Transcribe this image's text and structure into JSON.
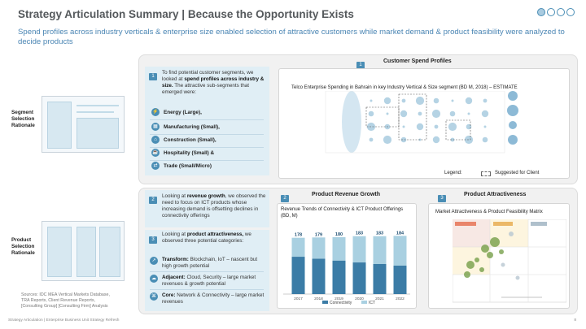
{
  "header": {
    "title": "Strategy Articulation Summary | Because the Opportunity Exists",
    "subtitle": "Spend profiles across industry verticals & enterprise size enabled selection of attractive customers while market demand & product feasibility were analyzed to decide products"
  },
  "side_labels": {
    "segment": [
      "Segment",
      "Selection",
      "Rationale"
    ],
    "product": [
      "Product",
      "Selection",
      "Rationale"
    ]
  },
  "segment_panel": {
    "num": "1",
    "text_pre": "To find potential customer segments, we looked at ",
    "text_bold": "spend profiles across industry & size.",
    "text_post": " The attractive sub-segments that emerged were:",
    "items": [
      "Energy (Large),",
      "Manufacturing (Small),",
      "Construction (Small),",
      "Hospitality (Small) &",
      "Trade (Small/Micro)"
    ]
  },
  "spend_profiles": {
    "num": "1",
    "title": "Customer Spend Profiles",
    "caption": "Telco Enterprise Spending in Bahrain in key Industry Vertical & Size segment (BD M, 2018) – ESTIMATE",
    "legend_label": "Legend:",
    "legend_text": "Suggested for Client"
  },
  "revenue_panel": {
    "num": "2",
    "text_pre": "Looking at ",
    "text_bold": "revenue growth",
    "text_post": ", we observed the need to focus on ICT products whose increasing demand is offsetting declines in connectivity offerings"
  },
  "attractiveness_panel": {
    "num": "3",
    "text_pre": "Looking at ",
    "text_bold": "product attractiveness,",
    "text_post": " we observed three potential categories:",
    "items": [
      {
        "label": "Transform:",
        "text": " Blockchain, IoT – nascent but high growth potential"
      },
      {
        "label": "Adjacent:",
        "text": " Cloud, Security – large market revenues & growth potential"
      },
      {
        "label": "Core:",
        "text": " Network & Connectivity – large market revenues"
      }
    ]
  },
  "revenue_growth": {
    "num": "2",
    "title": "Product Revenue Growth",
    "caption": "Revenue Trends of Connectivity & ICT Product Offerings (BD, M)"
  },
  "product_attractiveness": {
    "num": "3",
    "title": "Product Attractiveness",
    "caption": "Market Attractiveness & Product Feasibility Matrix"
  },
  "chart_data": {
    "type": "bar",
    "categories": [
      "2017",
      "2018",
      "2019",
      "2020",
      "2021",
      "2022"
    ],
    "totals": [
      178,
      179,
      180,
      183,
      183,
      184
    ],
    "series": [
      {
        "name": "Connectivity",
        "color": "#3b7ca6",
        "values": [
          118,
          112,
          106,
          100,
          95,
          90
        ]
      },
      {
        "name": "ICT",
        "color": "#a9d0e1",
        "values": [
          60,
          67,
          74,
          83,
          88,
          94
        ]
      }
    ]
  },
  "footnote": [
    "Sources: IDC MEA Vertical Markets Database,",
    "TRA Reports, Client Revenue Reports,",
    "[Consulting Group] [Consulting Firm] Analysis"
  ],
  "footer": "Strategy Articulation | Enterprise Business Unit Strategy Refresh",
  "page_number": "8",
  "colors": {
    "accent": "#4a8eb5",
    "panel": "#e0eef5"
  }
}
